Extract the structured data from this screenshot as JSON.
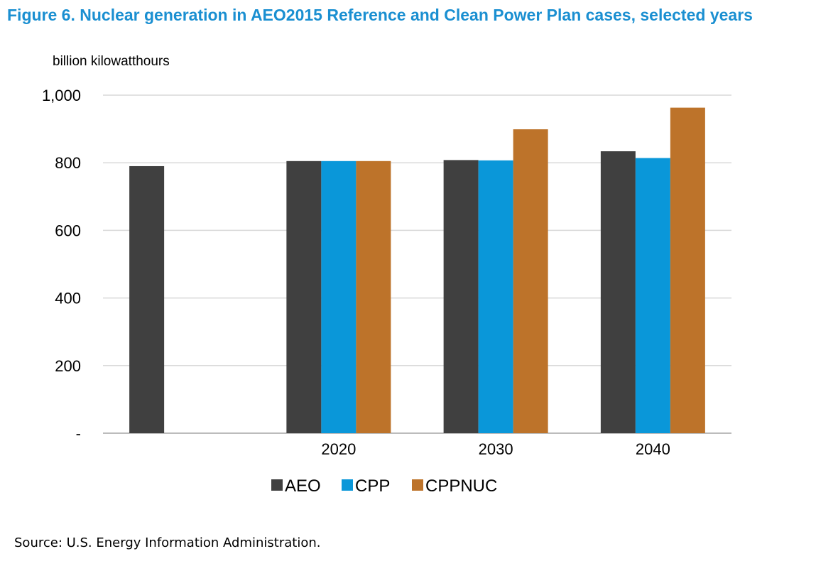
{
  "chart_data": {
    "type": "bar",
    "title": "Figure 6. Nuclear generation in AEO2015 Reference and Clean Power Plan cases, selected years",
    "ylabel": "billion kilowatthours",
    "xlabel": "",
    "categories": [
      "",
      "2020",
      "2030",
      "2040"
    ],
    "series": [
      {
        "name": "AEO",
        "color": "#404040",
        "values": [
          790,
          805,
          808,
          834
        ]
      },
      {
        "name": "CPP",
        "color": "#0a97d9",
        "values": [
          null,
          805,
          807,
          814
        ]
      },
      {
        "name": "CPPNUC",
        "color": "#bd732a",
        "values": [
          null,
          805,
          899,
          963
        ]
      }
    ],
    "ylim": [
      0,
      1000
    ],
    "yticks": [
      0,
      200,
      400,
      600,
      800,
      1000
    ],
    "ytick_labels": [
      "-",
      "200",
      "400",
      "600",
      "800",
      "1,000"
    ],
    "grid": true,
    "legend_position": "bottom"
  },
  "source": "Source: U.S. Energy Information Administration."
}
